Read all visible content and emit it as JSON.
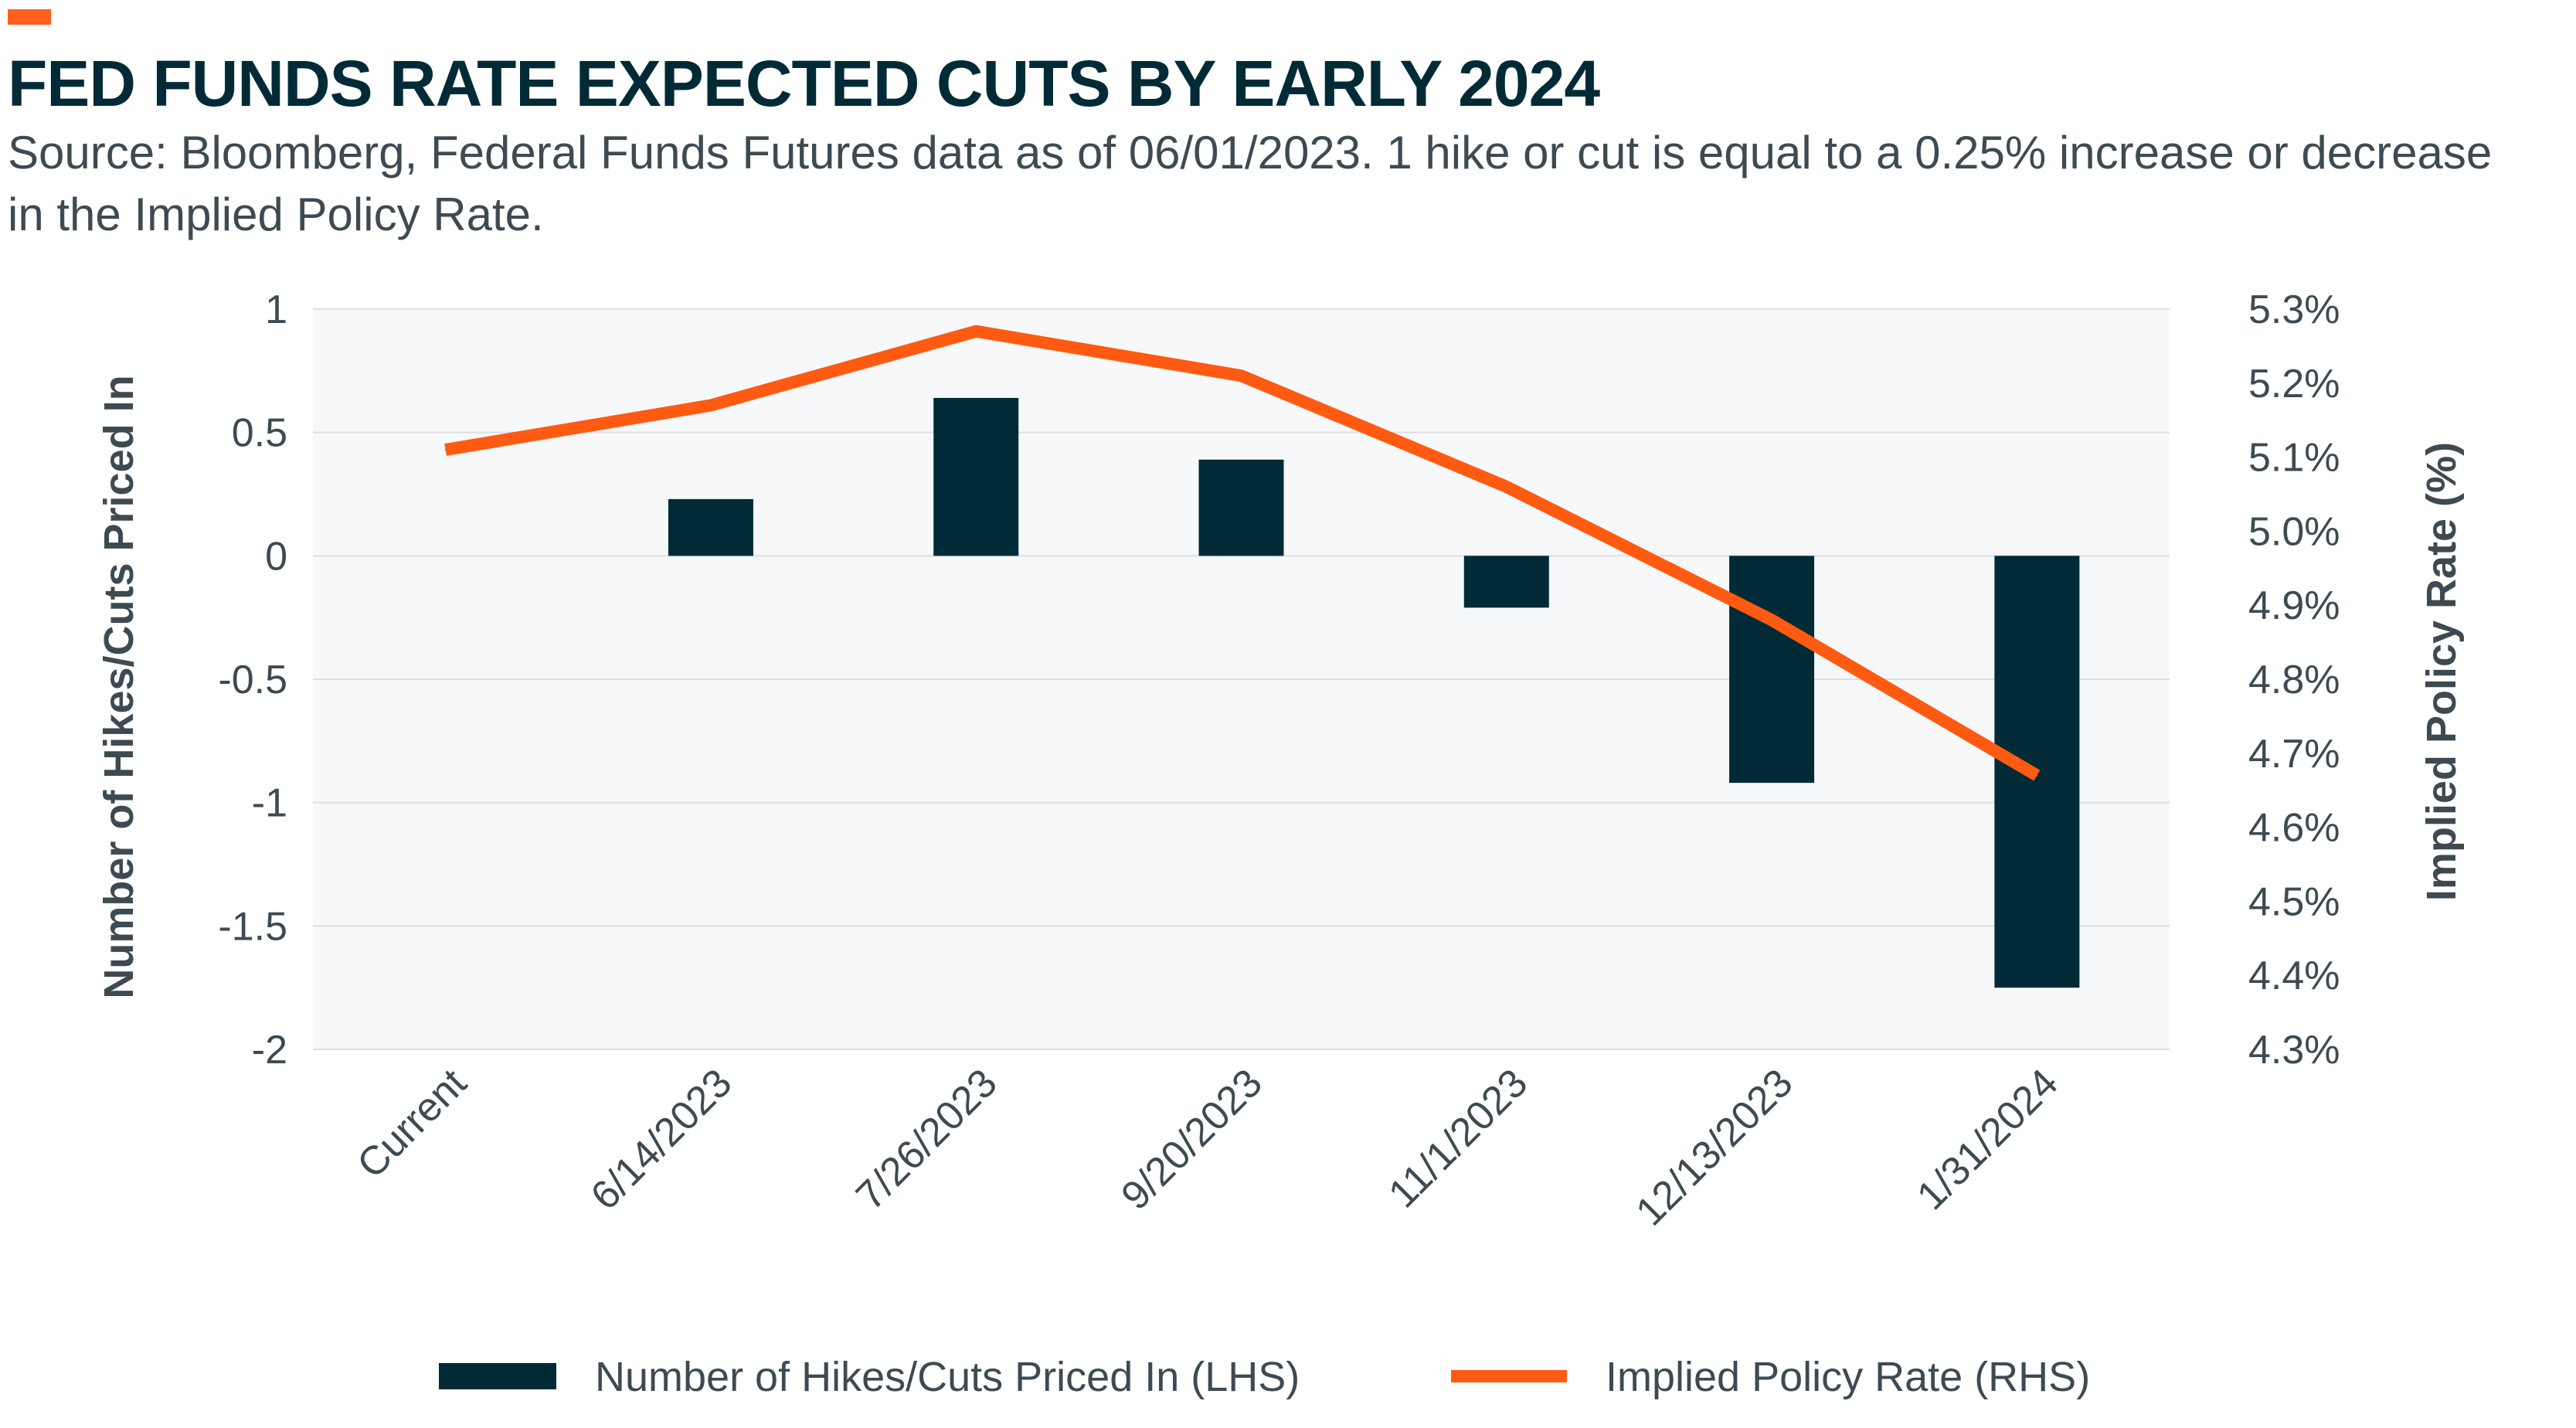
{
  "colors": {
    "accent": "#ff5f1f",
    "bar": "#002b36",
    "line": "#ff5a12",
    "plot_bg": "#f7f8fa",
    "grid": "#dddfe3",
    "text": "#3e4a52",
    "title": "#002b36"
  },
  "header": {
    "title": "FED FUNDS RATE EXPECTED CUTS BY EARLY 2024",
    "subtitle": "Source: Bloomberg, Federal Funds Futures data as of 06/01/2023. 1 hike or cut is equal to a 0.25% increase or decrease in the Implied Policy Rate."
  },
  "chart_data": {
    "type": "bar",
    "categories": [
      "Current",
      "6/14/2023",
      "7/26/2023",
      "9/20/2023",
      "11/1/2023",
      "12/13/2023",
      "1/31/2024"
    ],
    "series": [
      {
        "name": "Number of Hikes/Cuts Priced In (LHS)",
        "type": "bar",
        "axis": "left",
        "values": [
          0,
          0.23,
          0.64,
          0.39,
          -0.21,
          -0.92,
          -1.75
        ]
      },
      {
        "name": "Implied Policy Rate (RHS)",
        "type": "line",
        "axis": "right",
        "values": [
          5.11,
          5.17,
          5.27,
          5.21,
          5.06,
          4.88,
          4.67
        ]
      }
    ],
    "ylabel": "Number of Hikes/Cuts Priced In",
    "ylabel_right": "Implied Policy Rate (%)",
    "ylim": [
      -2,
      1
    ],
    "ylim_right": [
      4.3,
      5.3
    ],
    "yticks": [
      1,
      0.5,
      0,
      -0.5,
      -1,
      -1.5,
      -2
    ],
    "ytick_labels": [
      "1",
      "0.5",
      "0",
      "-0.5",
      "-1",
      "-1.5",
      "-2"
    ],
    "yticks_right": [
      5.3,
      5.2,
      5.1,
      5.0,
      4.9,
      4.8,
      4.7,
      4.6,
      4.5,
      4.4,
      4.3
    ],
    "ytick_labels_right": [
      "5.3%",
      "5.2%",
      "5.1%",
      "5.0%",
      "4.9%",
      "4.8%",
      "4.7%",
      "4.6%",
      "4.5%",
      "4.4%",
      "4.3%"
    ],
    "grid": true,
    "legend_position": "bottom"
  }
}
